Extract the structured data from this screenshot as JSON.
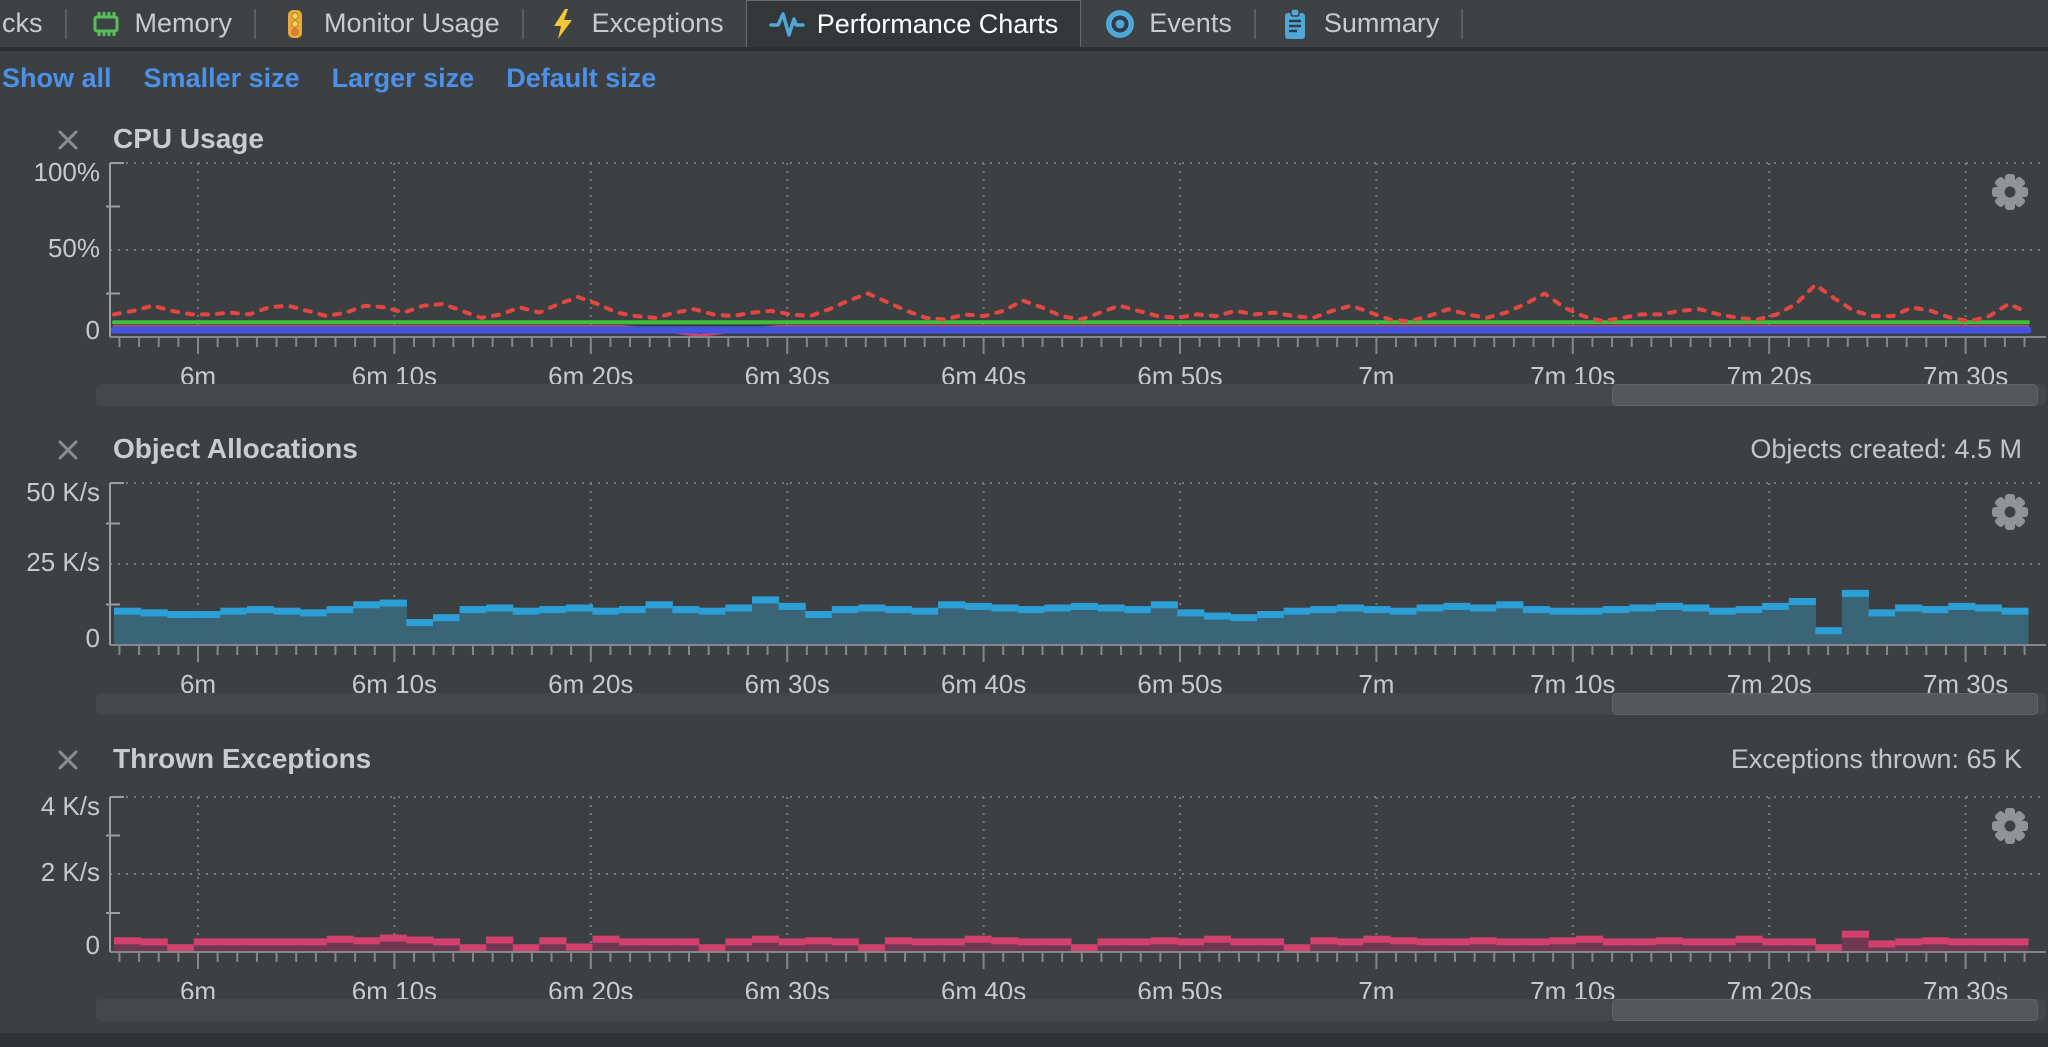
{
  "tab_bar": {
    "tabs": [
      {
        "label": "cks",
        "icon": null,
        "selected": false
      },
      {
        "label": "Memory",
        "icon": "memory-icon",
        "selected": false
      },
      {
        "label": "Monitor Usage",
        "icon": "traffic-light-icon",
        "selected": false
      },
      {
        "label": "Exceptions",
        "icon": "lightning-bolt-icon",
        "selected": false
      },
      {
        "label": "Performance Charts",
        "icon": "pulse-icon",
        "selected": true
      },
      {
        "label": "Events",
        "icon": "eye-icon",
        "selected": false
      },
      {
        "label": "Summary",
        "icon": "clipboard-icon",
        "selected": false
      }
    ]
  },
  "toolbar": {
    "links": [
      "Show all",
      "Smaller size",
      "Larger size",
      "Default size"
    ]
  },
  "ui_colors": {
    "background": "#3c4043",
    "link": "#4c90e8",
    "text": "#c9cccd",
    "grid": "#757b7d",
    "axis": "#9aa0a2",
    "scrollbar_track": "#45484b",
    "scrollbar_thumb": "#54585b"
  },
  "chart_data": [
    {
      "type": "line",
      "title": "CPU Usage",
      "annotation": "",
      "x_tick_labels": [
        "6m",
        "6m 10s",
        "6m 20s",
        "6m 30s",
        "6m 40s",
        "6m 50s",
        "7m",
        "7m 10s",
        "7m 20s",
        "7m 30s"
      ],
      "y_tick_labels": [
        "100%",
        "50%",
        "0"
      ],
      "ylim": [
        0,
        100
      ],
      "grid": "dotted",
      "legend": "none",
      "series": [
        {
          "name": "cpu-dotted-red",
          "color": "#e2483f",
          "line_style": "dotted",
          "width": 4,
          "values": [
            13,
            15,
            18,
            15,
            13,
            13,
            14,
            13,
            17,
            18,
            15,
            12,
            14,
            18,
            17,
            14,
            18,
            19,
            15,
            11,
            13,
            17,
            14,
            19,
            23,
            19,
            14,
            12,
            11,
            14,
            16,
            13,
            12,
            14,
            15,
            13,
            12,
            16,
            21,
            25,
            20,
            15,
            11,
            10,
            13,
            12,
            15,
            21,
            17,
            12,
            10,
            14,
            18,
            15,
            12,
            11,
            13,
            12,
            15,
            13,
            14,
            12,
            11,
            15,
            18,
            14,
            10,
            9,
            12,
            16,
            13,
            11,
            14,
            19,
            25,
            17,
            12,
            9,
            11,
            13,
            13,
            15,
            16,
            13,
            11,
            10,
            13,
            19,
            30,
            22,
            15,
            12,
            12,
            17,
            15,
            11,
            9,
            12,
            19,
            14
          ]
        },
        {
          "name": "cpu-green",
          "color": "#3dc03d",
          "line_style": "solid",
          "width": 4,
          "values": [
            8.5,
            8.5
          ]
        },
        {
          "name": "cpu-crimson",
          "color": "#cb4470",
          "line_style": "solid",
          "width": 3,
          "values": [
            6,
            6,
            6,
            6,
            6,
            6,
            6,
            6,
            6,
            6,
            6,
            6,
            6,
            6,
            4,
            0.8,
            4,
            6,
            6,
            6,
            6,
            6,
            6,
            6,
            6,
            6,
            6,
            6,
            6,
            6,
            6,
            6,
            6,
            6,
            6,
            6,
            6,
            6,
            6,
            6,
            6,
            6,
            6,
            6,
            6,
            6,
            6,
            6,
            6,
            6
          ]
        },
        {
          "name": "cpu-blue",
          "color": "#4355e0",
          "line_style": "solid",
          "width": 7,
          "values": [
            4,
            4
          ]
        }
      ]
    },
    {
      "type": "step-area",
      "title": "Object Allocations",
      "annotation": "Objects created: 4.5 M",
      "x_tick_labels": [
        "6m",
        "6m 10s",
        "6m 20s",
        "6m 30s",
        "6m 40s",
        "6m 50s",
        "7m",
        "7m 10s",
        "7m 20s",
        "7m 30s"
      ],
      "y_tick_labels": [
        "50 K/s",
        "25 K/s",
        "0"
      ],
      "ylim": [
        0,
        50
      ],
      "grid": "dotted",
      "edge_color": "#2b9fd6",
      "fill_color": "#3a6577",
      "values": [
        11.5,
        11,
        10.5,
        10.5,
        11.5,
        12,
        11.5,
        11,
        12,
        13.5,
        14,
        8,
        9.5,
        12,
        12.5,
        11.5,
        12,
        12.5,
        11.5,
        12,
        13.5,
        12,
        11.5,
        12.5,
        15,
        13,
        10.5,
        12,
        12.5,
        12,
        11.5,
        13.5,
        13,
        12.5,
        12,
        12.5,
        13,
        12.5,
        12,
        13.5,
        11,
        10,
        9.5,
        10.5,
        11.5,
        12,
        12.5,
        12,
        11.5,
        12.5,
        13,
        12.5,
        13.5,
        12,
        11.5,
        11.5,
        12,
        12.5,
        13,
        12.5,
        11.5,
        12,
        13,
        14.5,
        5.5,
        17,
        11,
        12.5,
        12,
        13,
        12.5,
        11.5
      ]
    },
    {
      "type": "step-area",
      "title": "Thrown Exceptions",
      "annotation": "Exceptions thrown: 65 K",
      "x_tick_labels": [
        "6m",
        "6m 10s",
        "6m 20s",
        "6m 30s",
        "6m 40s",
        "6m 50s",
        "7m",
        "7m 10s",
        "7m 20s",
        "7m 30s"
      ],
      "y_tick_labels": [
        "4 K/s",
        "2 K/s",
        "0"
      ],
      "ylim": [
        0,
        4
      ],
      "grid": "dotted",
      "edge_color": "#d2416e",
      "fill_color": "#6e3950",
      "values": [
        0.38,
        0.35,
        0.2,
        0.35,
        0.35,
        0.35,
        0.35,
        0.35,
        0.42,
        0.38,
        0.45,
        0.4,
        0.35,
        0.2,
        0.4,
        0.2,
        0.38,
        0.22,
        0.42,
        0.35,
        0.35,
        0.35,
        0.2,
        0.35,
        0.42,
        0.35,
        0.38,
        0.35,
        0.2,
        0.38,
        0.35,
        0.35,
        0.42,
        0.38,
        0.35,
        0.35,
        0.2,
        0.35,
        0.35,
        0.38,
        0.35,
        0.42,
        0.35,
        0.35,
        0.2,
        0.38,
        0.35,
        0.42,
        0.38,
        0.35,
        0.35,
        0.38,
        0.35,
        0.35,
        0.38,
        0.42,
        0.35,
        0.35,
        0.38,
        0.35,
        0.35,
        0.42,
        0.35,
        0.35,
        0.2,
        0.55,
        0.3,
        0.35,
        0.38,
        0.35,
        0.35,
        0.35
      ]
    }
  ]
}
